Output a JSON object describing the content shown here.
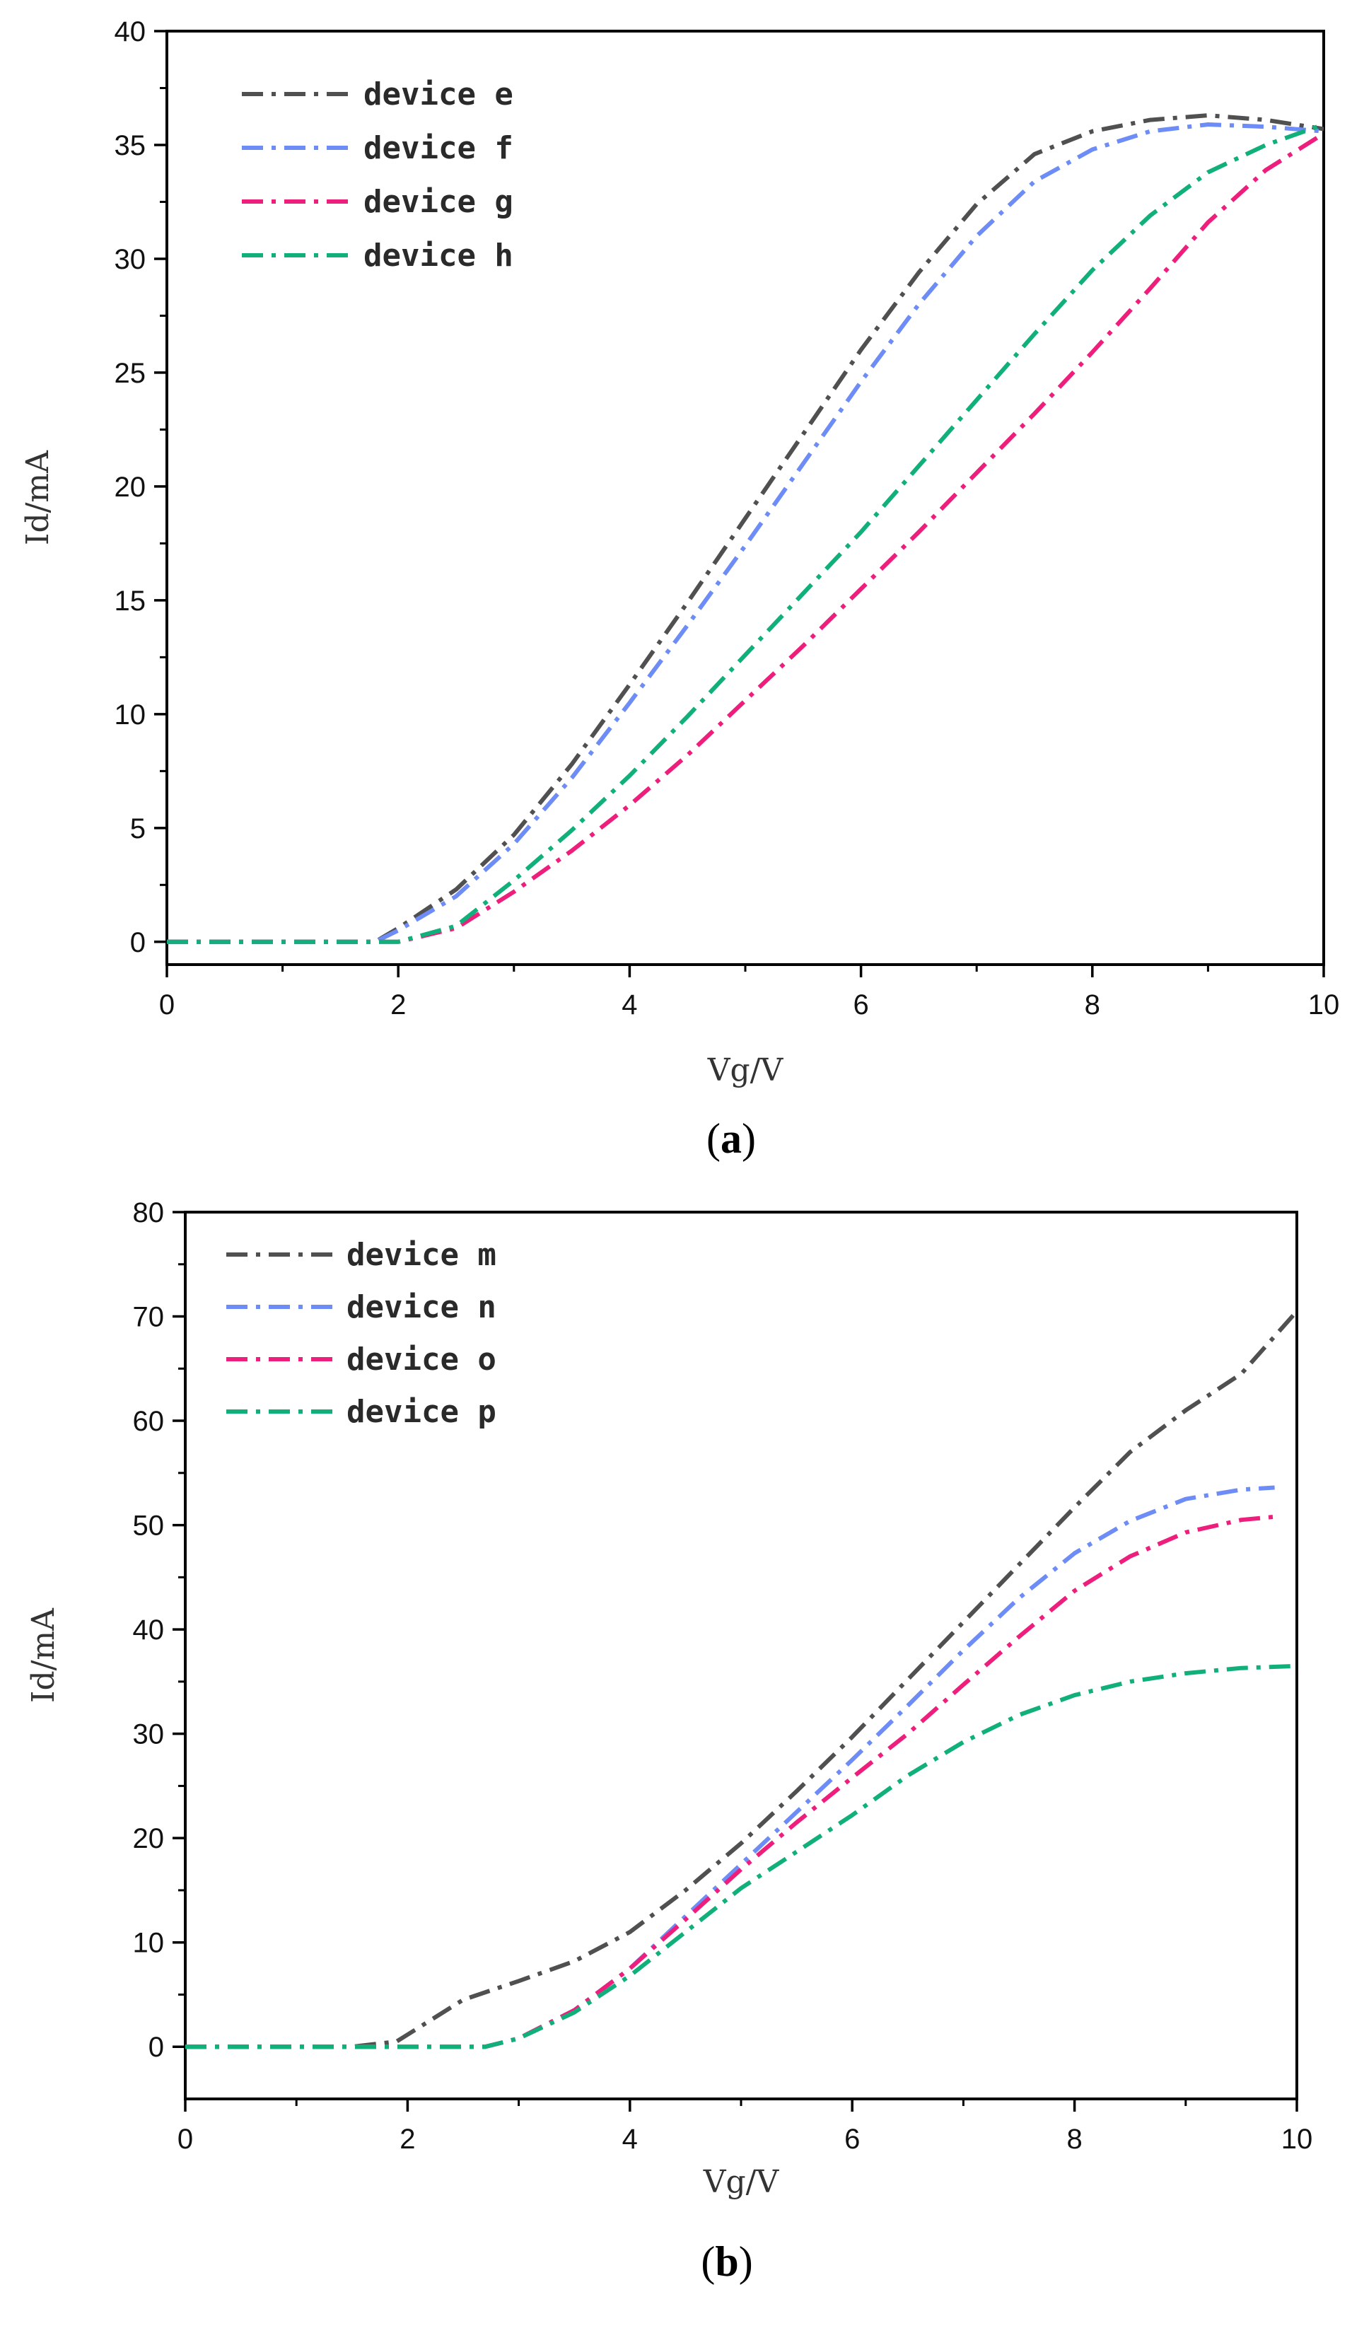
{
  "figure": {
    "colors": {
      "device_gray": "#505050",
      "device_blue": "#6d8cf5",
      "device_pink": "#ee1f7c",
      "device_green": "#11b07a",
      "axis": "#000000"
    }
  },
  "chart_data": [
    {
      "id": "a",
      "type": "line",
      "panel_label": {
        "open": "(",
        "letter": "a",
        "close": ")"
      },
      "title": "",
      "xlabel": "Vg/V",
      "ylabel": "Id/mA",
      "xlim": [
        0,
        10
      ],
      "ylim": [
        -1,
        40
      ],
      "xticks": [
        0,
        2,
        4,
        6,
        8,
        10
      ],
      "yticks": [
        0,
        5,
        10,
        15,
        20,
        25,
        30,
        35,
        40
      ],
      "grid": false,
      "legend_position": "top-left",
      "series": [
        {
          "name": "device e",
          "color": "#505050",
          "x": [
            0,
            1.8,
            2.0,
            2.5,
            3.0,
            3.5,
            4.0,
            4.5,
            5.0,
            5.5,
            6.0,
            6.5,
            7.0,
            7.5,
            8.0,
            8.5,
            9.0,
            9.5,
            10.0
          ],
          "y": [
            0,
            0.0,
            0.6,
            2.3,
            4.7,
            7.8,
            11.3,
            14.9,
            18.6,
            22.3,
            26.0,
            29.4,
            32.4,
            34.6,
            35.6,
            36.1,
            36.3,
            36.1,
            35.7
          ]
        },
        {
          "name": "device f",
          "color": "#6d8cf5",
          "x": [
            0,
            1.8,
            2.0,
            2.5,
            3.0,
            3.5,
            4.0,
            4.5,
            5.0,
            5.5,
            6.0,
            6.5,
            7.0,
            7.5,
            8.0,
            8.5,
            9.0,
            9.5,
            10.0
          ],
          "y": [
            0,
            0.0,
            0.5,
            2.0,
            4.3,
            7.2,
            10.5,
            13.9,
            17.4,
            21.0,
            24.6,
            28.0,
            31.0,
            33.4,
            34.8,
            35.6,
            35.9,
            35.8,
            35.6
          ]
        },
        {
          "name": "device g",
          "color": "#ee1f7c",
          "x": [
            0,
            2.0,
            2.5,
            3.0,
            3.5,
            4.0,
            4.5,
            5.0,
            5.5,
            6.0,
            6.5,
            7.0,
            7.5,
            8.0,
            8.5,
            9.0,
            9.5,
            10.0
          ],
          "y": [
            0,
            0.0,
            0.6,
            2.2,
            4.0,
            6.0,
            8.2,
            10.6,
            13.0,
            15.5,
            18.0,
            20.6,
            23.2,
            25.9,
            28.7,
            31.6,
            33.9,
            35.5
          ]
        },
        {
          "name": "device h",
          "color": "#11b07a",
          "x": [
            0,
            2.0,
            2.5,
            3.0,
            3.5,
            4.0,
            4.5,
            5.0,
            5.5,
            6.0,
            6.5,
            7.0,
            7.5,
            8.0,
            8.5,
            9.0,
            9.5,
            10.0
          ],
          "y": [
            0,
            0.0,
            0.7,
            2.7,
            4.9,
            7.3,
            9.9,
            12.6,
            15.3,
            18.0,
            20.9,
            23.8,
            26.7,
            29.5,
            31.9,
            33.8,
            35.0,
            35.9
          ]
        }
      ]
    },
    {
      "id": "b",
      "type": "line",
      "panel_label": {
        "open": "(",
        "letter": "b",
        "close": ")"
      },
      "title": "",
      "xlabel": "Vg/V",
      "ylabel": "Id/mA",
      "xlim": [
        0,
        10
      ],
      "ylim": [
        -5,
        80
      ],
      "xticks": [
        0,
        2,
        4,
        6,
        8,
        10
      ],
      "yticks": [
        0,
        10,
        20,
        30,
        40,
        50,
        60,
        70,
        80
      ],
      "grid": false,
      "legend_position": "top-left",
      "series": [
        {
          "name": "device m",
          "color": "#505050",
          "x": [
            0,
            1.5,
            1.9,
            2.2,
            2.5,
            3.0,
            3.5,
            4.0,
            4.5,
            5.0,
            5.5,
            6.0,
            6.5,
            7.0,
            7.5,
            8.0,
            8.5,
            9.0,
            9.5,
            10.0
          ],
          "y": [
            0,
            0.0,
            0.5,
            2.5,
            4.5,
            6.3,
            8.2,
            11.0,
            15.0,
            19.5,
            24.5,
            29.7,
            35.2,
            40.7,
            46.2,
            51.7,
            57.0,
            61.0,
            64.5,
            70.5
          ]
        },
        {
          "name": "device n",
          "color": "#6d8cf5",
          "x": [
            0,
            2.7,
            3.0,
            3.5,
            4.0,
            4.5,
            5.0,
            5.5,
            6.0,
            6.5,
            7.0,
            7.5,
            8.0,
            8.5,
            9.0,
            9.5,
            9.8
          ],
          "y": [
            0,
            0.0,
            0.8,
            3.5,
            7.5,
            12.5,
            17.5,
            22.5,
            27.5,
            32.7,
            38.0,
            43.0,
            47.3,
            50.4,
            52.5,
            53.4,
            53.6
          ]
        },
        {
          "name": "device o",
          "color": "#ee1f7c",
          "x": [
            0,
            2.7,
            3.0,
            3.5,
            4.0,
            4.5,
            5.0,
            5.5,
            6.0,
            6.5,
            7.0,
            7.5,
            8.0,
            8.5,
            9.0,
            9.5,
            9.8
          ],
          "y": [
            0,
            0.0,
            0.8,
            3.5,
            7.5,
            12.2,
            17.0,
            21.5,
            25.8,
            30.0,
            34.7,
            39.3,
            43.7,
            47.0,
            49.3,
            50.5,
            50.8
          ]
        },
        {
          "name": "device p",
          "color": "#11b07a",
          "x": [
            0,
            2.7,
            3.0,
            3.5,
            4.0,
            4.5,
            5.0,
            5.5,
            6.0,
            6.5,
            7.0,
            7.5,
            8.0,
            8.5,
            9.0,
            9.5,
            10.0
          ],
          "y": [
            0,
            0.0,
            0.8,
            3.3,
            6.8,
            11.0,
            15.2,
            18.7,
            22.2,
            26.0,
            29.2,
            31.8,
            33.7,
            35.0,
            35.8,
            36.3,
            36.5
          ]
        }
      ]
    }
  ]
}
